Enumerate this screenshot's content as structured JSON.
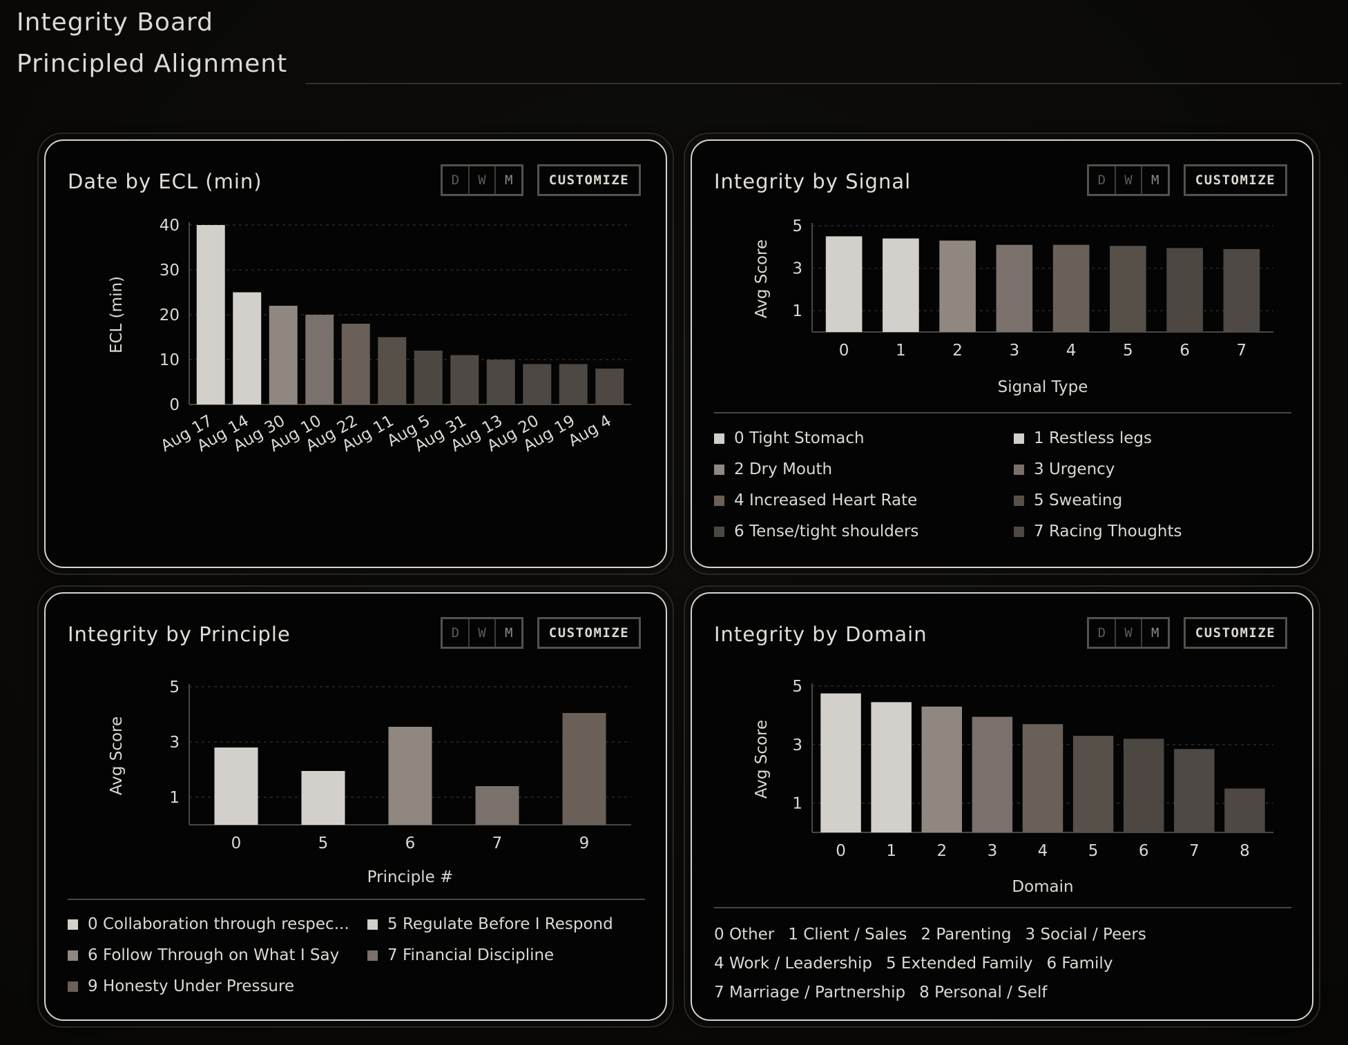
{
  "header": {
    "brand": "Integrity Board",
    "subtitle": "Principled Alignment"
  },
  "controls": {
    "d": "D",
    "w": "W",
    "m": "M",
    "customize": "CUSTOMIZE"
  },
  "colors": {
    "shade0": "#d3d0cb",
    "shade1": "#d3d0cb",
    "shade2": "#908880",
    "shade3": "#7a716c",
    "shade4": "#6a6058",
    "shade5": "#575049",
    "shade6": "#4d4742",
    "shade7": "#4f4945",
    "shade8": "#4d4844"
  },
  "cards": {
    "ecl": {
      "title": "Date by ECL (min)"
    },
    "signal": {
      "title": "Integrity by Signal",
      "legend": [
        {
          "label": "0 Tight Stomach",
          "color": "#d3d0cb"
        },
        {
          "label": "1 Restless legs",
          "color": "#d3d0cb"
        },
        {
          "label": "2 Dry Mouth",
          "color": "#908880"
        },
        {
          "label": "3 Urgency",
          "color": "#7a716c"
        },
        {
          "label": "4 Increased Heart Rate",
          "color": "#6a6058"
        },
        {
          "label": "5 Sweating",
          "color": "#575049"
        },
        {
          "label": "6 Tense/tight shoulders",
          "color": "#4d4742"
        },
        {
          "label": "7 Racing Thoughts",
          "color": "#4f4945"
        }
      ]
    },
    "principle": {
      "title": "Integrity by Principle",
      "legend": [
        {
          "label": "0 Collaboration through respec...",
          "color": "#d3d0cb"
        },
        {
          "label": "5 Regulate Before I Respond",
          "color": "#d3d0cb"
        },
        {
          "label": "6 Follow Through on What I Say",
          "color": "#908880"
        },
        {
          "label": "7 Financial Discipline",
          "color": "#7a716c"
        },
        {
          "label": "9 Honesty Under Pressure",
          "color": "#6a6058"
        }
      ]
    },
    "domain": {
      "title": "Integrity by Domain",
      "legend": [
        "0 Other",
        "1 Client / Sales",
        "2 Parenting",
        "3 Social / Peers",
        "4 Work / Leadership",
        "5 Extended Family",
        "6 Family",
        "7 Marriage / Partnership",
        "8 Personal / Self"
      ]
    }
  },
  "chart_data": [
    {
      "type": "bar",
      "title": "Date by ECL (min)",
      "ylabel": "ECL (min)",
      "xlabel": "",
      "categories": [
        "Aug 17",
        "Aug 14",
        "Aug 30",
        "Aug 10",
        "Aug 22",
        "Aug 11",
        "Aug 5",
        "Aug 31",
        "Aug 13",
        "Aug 20",
        "Aug 19",
        "Aug 4"
      ],
      "values": [
        40,
        25,
        22,
        20,
        18,
        15,
        12,
        11,
        10,
        9,
        9,
        8
      ],
      "ylim": [
        0,
        40
      ],
      "yticks": [
        0,
        10,
        20,
        30,
        40
      ],
      "grid": true
    },
    {
      "type": "bar",
      "title": "Integrity by Signal",
      "ylabel": "Avg Score",
      "xlabel": "Signal Type",
      "categories": [
        "0",
        "1",
        "2",
        "3",
        "4",
        "5",
        "6",
        "7"
      ],
      "values": [
        4.5,
        4.4,
        4.3,
        4.1,
        4.1,
        4.05,
        3.95,
        3.9
      ],
      "ylim": [
        0,
        5
      ],
      "yticks": [
        1,
        3,
        5
      ],
      "grid": true
    },
    {
      "type": "bar",
      "title": "Integrity by Principle",
      "ylabel": "Avg Score",
      "xlabel": "Principle #",
      "categories": [
        "0",
        "5",
        "6",
        "7",
        "9"
      ],
      "values": [
        2.8,
        1.95,
        3.55,
        1.4,
        4.05
      ],
      "ylim": [
        0,
        5
      ],
      "yticks": [
        1,
        3,
        5
      ],
      "grid": true
    },
    {
      "type": "bar",
      "title": "Integrity by Domain",
      "ylabel": "Avg Score",
      "xlabel": "Domain",
      "categories": [
        "0",
        "1",
        "2",
        "3",
        "4",
        "5",
        "6",
        "7",
        "8"
      ],
      "values": [
        4.75,
        4.45,
        4.3,
        3.95,
        3.7,
        3.3,
        3.2,
        2.85,
        1.5
      ],
      "ylim": [
        0,
        5
      ],
      "yticks": [
        1,
        3,
        5
      ],
      "grid": true
    }
  ]
}
